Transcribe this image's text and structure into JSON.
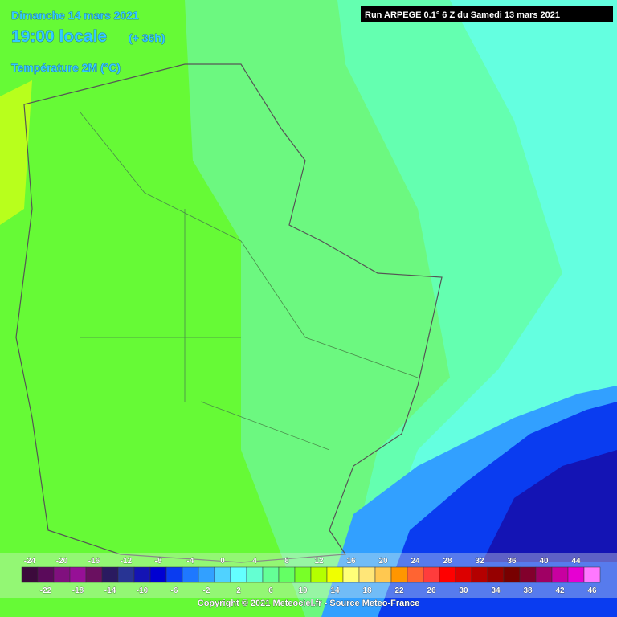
{
  "header": {
    "date": "Dimanche 14 mars 2021",
    "time": "19:00 locale",
    "lead": "(+ 36h)",
    "field": "Température 2M (°C)"
  },
  "run": "Run ARPEGE 0.1° 6 Z du Samedi 13 mars 2021",
  "legend": {
    "values": [
      -24,
      -22,
      -20,
      -18,
      -16,
      -14,
      -12,
      -10,
      -8,
      -6,
      -4,
      -2,
      0,
      2,
      4,
      6,
      8,
      10,
      12,
      14,
      16,
      18,
      20,
      22,
      24,
      26,
      28,
      30,
      32,
      34,
      36,
      38,
      40,
      42,
      44,
      46
    ],
    "colors": [
      "#3c0a3c",
      "#5a0a5a",
      "#80107e",
      "#961096",
      "#6a1060",
      "#2a1a60",
      "#283494",
      "#1414b4",
      "#0000d2",
      "#0a3cf0",
      "#1e78ff",
      "#32a0ff",
      "#50d2ff",
      "#64ffff",
      "#64ffd2",
      "#64ff96",
      "#64ff64",
      "#78ff28",
      "#b4ff00",
      "#f0ff00",
      "#ffff78",
      "#ffe678",
      "#ffc850",
      "#ff9600",
      "#ff6432",
      "#ff3c3c",
      "#ff0000",
      "#dc0000",
      "#b40000",
      "#960000",
      "#780000",
      "#82002c",
      "#a00064",
      "#c800a0",
      "#e600d2",
      "#ff78ff"
    ]
  },
  "copyright": "Copyright © 2021 Meteociel.fr - Source Meteo-France"
}
